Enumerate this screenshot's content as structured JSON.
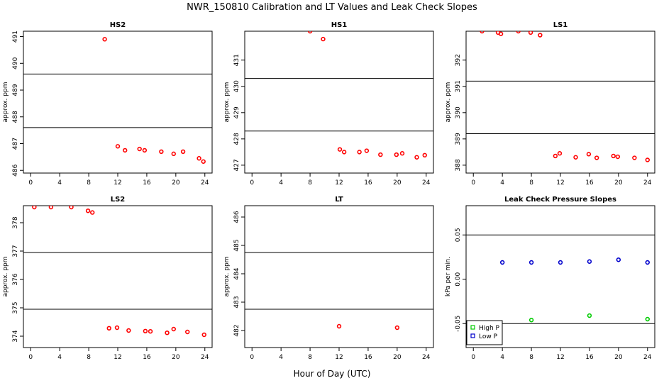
{
  "title": "NWR_150810  Calibration and LT Values and Leak Check Slopes",
  "xlabel": "Hour of Day (UTC)",
  "chart_data": [
    {
      "type": "scatter",
      "title": "HS2",
      "ylabel": "approx. ppm",
      "xlim": [
        -1,
        25
      ],
      "xticks": [
        0,
        4,
        8,
        12,
        16,
        20,
        24
      ],
      "ylim": [
        485.9,
        491.2
      ],
      "yticks": [
        486,
        487,
        488,
        489,
        490,
        491
      ],
      "hlines": [
        489.6,
        487.6
      ],
      "series": [
        {
          "color": "#ff0000",
          "points": [
            [
              10.2,
              490.9
            ],
            [
              12.0,
              486.9
            ],
            [
              13.0,
              486.75
            ],
            [
              15.0,
              486.8
            ],
            [
              15.7,
              486.75
            ],
            [
              18.0,
              486.7
            ],
            [
              19.7,
              486.62
            ],
            [
              21.0,
              486.7
            ],
            [
              23.2,
              486.45
            ],
            [
              23.8,
              486.33
            ]
          ]
        }
      ]
    },
    {
      "type": "scatter",
      "title": "HS1",
      "ylabel": "approx. ppm",
      "xlim": [
        -1,
        25
      ],
      "xticks": [
        0,
        4,
        8,
        12,
        16,
        20,
        24
      ],
      "ylim": [
        426.7,
        432.1
      ],
      "yticks": [
        427,
        428,
        429,
        430,
        431
      ],
      "hlines": [
        430.3,
        428.3
      ],
      "series": [
        {
          "color": "#ff0000",
          "points": [
            [
              8.0,
              432.1
            ],
            [
              9.8,
              431.8
            ],
            [
              12.1,
              427.6
            ],
            [
              12.7,
              427.5
            ],
            [
              14.8,
              427.5
            ],
            [
              15.8,
              427.55
            ],
            [
              17.7,
              427.4
            ],
            [
              19.9,
              427.4
            ],
            [
              20.7,
              427.45
            ],
            [
              22.7,
              427.3
            ],
            [
              23.8,
              427.38
            ]
          ]
        }
      ]
    },
    {
      "type": "scatter",
      "title": "LS1",
      "ylabel": "approx. ppm",
      "xlim": [
        -1,
        25
      ],
      "xticks": [
        0,
        4,
        8,
        12,
        16,
        20,
        24
      ],
      "ylim": [
        387.7,
        393.1
      ],
      "yticks": [
        388,
        389,
        390,
        391,
        392
      ],
      "hlines": [
        391.2,
        389.2
      ],
      "series": [
        {
          "color": "#ff0000",
          "points": [
            [
              1.2,
              393.1
            ],
            [
              3.4,
              393.05
            ],
            [
              3.8,
              393.0
            ],
            [
              6.2,
              393.1
            ],
            [
              7.9,
              393.05
            ],
            [
              9.2,
              392.95
            ],
            [
              11.3,
              388.35
            ],
            [
              11.9,
              388.45
            ],
            [
              14.1,
              388.3
            ],
            [
              15.9,
              388.42
            ],
            [
              17.0,
              388.28
            ],
            [
              19.3,
              388.35
            ],
            [
              19.9,
              388.32
            ],
            [
              22.2,
              388.28
            ],
            [
              24.0,
              388.2
            ]
          ]
        }
      ]
    },
    {
      "type": "scatter",
      "title": "LS2",
      "ylabel": "approx. ppm",
      "xlim": [
        -1,
        25
      ],
      "xticks": [
        0,
        4,
        8,
        12,
        16,
        20,
        24
      ],
      "ylim": [
        373.6,
        378.6
      ],
      "yticks": [
        374,
        375,
        376,
        377,
        378
      ],
      "hlines": [
        376.95,
        374.95
      ],
      "series": [
        {
          "color": "#ff0000",
          "points": [
            [
              0.5,
              378.55
            ],
            [
              2.8,
              378.55
            ],
            [
              5.6,
              378.55
            ],
            [
              7.9,
              378.42
            ],
            [
              8.5,
              378.36
            ],
            [
              10.8,
              374.28
            ],
            [
              11.9,
              374.3
            ],
            [
              13.5,
              374.2
            ],
            [
              15.8,
              374.18
            ],
            [
              16.5,
              374.17
            ],
            [
              18.8,
              374.12
            ],
            [
              19.7,
              374.25
            ],
            [
              21.6,
              374.15
            ],
            [
              23.9,
              374.05
            ]
          ]
        }
      ]
    },
    {
      "type": "scatter",
      "title": "LT",
      "ylabel": "approx. ppm",
      "xlim": [
        -1,
        25
      ],
      "xticks": [
        0,
        4,
        8,
        12,
        16,
        20,
        24
      ],
      "ylim": [
        481.4,
        486.4
      ],
      "yticks": [
        482,
        483,
        484,
        485,
        486
      ],
      "hlines": [
        484.75,
        482.75
      ],
      "series": [
        {
          "color": "#ff0000",
          "points": [
            [
              12.0,
              482.15
            ],
            [
              20.0,
              482.1
            ]
          ]
        }
      ]
    },
    {
      "type": "scatter",
      "title": "Leak Check Pressure Slopes",
      "ylabel": "kPa per min.",
      "xlim": [
        -1,
        25
      ],
      "xticks": [
        0,
        4,
        8,
        12,
        16,
        20,
        24
      ],
      "ylim": [
        -0.077,
        0.083
      ],
      "yticks": [
        -0.05,
        0.0,
        0.05
      ],
      "ytick_labels": [
        "-0.05",
        "0.00",
        "0.05"
      ],
      "hlines": [
        0.05,
        -0.05
      ],
      "legend": {
        "position": "bottom-left"
      },
      "series": [
        {
          "name": "High P",
          "color": "#00cc00",
          "points": [
            [
              8,
              -0.046
            ],
            [
              16,
              -0.041
            ],
            [
              24,
              -0.045
            ]
          ]
        },
        {
          "name": "Low P",
          "color": "#0000cc",
          "points": [
            [
              4,
              0.019
            ],
            [
              8,
              0.019
            ],
            [
              12,
              0.019
            ],
            [
              16,
              0.02
            ],
            [
              20,
              0.022
            ],
            [
              24,
              0.019
            ]
          ]
        }
      ]
    }
  ]
}
